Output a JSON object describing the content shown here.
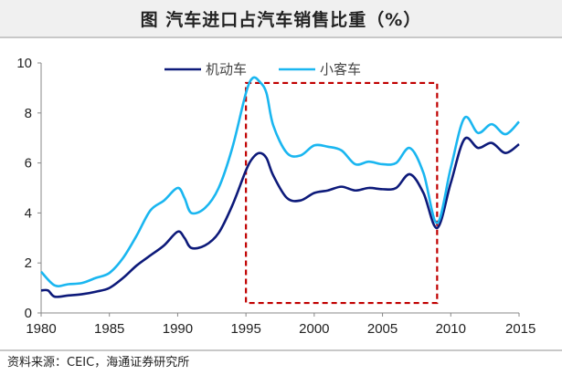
{
  "header": {
    "title": "图   汽车进口占汽车销售比重（%）"
  },
  "footer": {
    "source": "资料来源：CEIC，海通证券研究所"
  },
  "chart_data": {
    "type": "line",
    "title": "图   汽车进口占汽车销售比重（%）",
    "xlabel": "",
    "ylabel": "",
    "xlim": [
      1980,
      2015
    ],
    "ylim": [
      0,
      10
    ],
    "xticks": [
      1980,
      1985,
      1990,
      1995,
      2000,
      2005,
      2010,
      2015
    ],
    "xtick_labels": [
      "1980",
      "1985",
      "1990",
      "1995",
      "2000",
      "2005",
      "2010",
      "2015"
    ],
    "yticks": [
      0,
      2,
      4,
      6,
      8,
      10
    ],
    "legend_position": "top",
    "grid": false,
    "annotation": {
      "type": "dashed-rectangle",
      "x_range": [
        1995,
        2009
      ],
      "y_range": [
        0.4,
        9.2
      ],
      "color": "#c00000"
    },
    "series": [
      {
        "name": "机动车",
        "color": "#0d1a7a",
        "x": [
          1980,
          1980.5,
          1981,
          1982,
          1983,
          1984,
          1985,
          1986,
          1987,
          1988,
          1989,
          1990,
          1990.5,
          1991,
          1992,
          1993,
          1994,
          1995,
          1995.5,
          1996,
          1996.5,
          1997,
          1998,
          1999,
          2000,
          2001,
          2002,
          2003,
          2004,
          2005,
          2006,
          2007,
          2008,
          2009,
          2010,
          2011,
          2012,
          2013,
          2014,
          2015
        ],
        "y": [
          0.9,
          0.9,
          0.65,
          0.7,
          0.75,
          0.85,
          1.0,
          1.4,
          1.9,
          2.3,
          2.7,
          3.25,
          3.0,
          2.6,
          2.7,
          3.2,
          4.3,
          5.7,
          6.2,
          6.4,
          6.2,
          5.5,
          4.6,
          4.5,
          4.8,
          4.9,
          5.05,
          4.9,
          5.0,
          4.95,
          5.0,
          5.55,
          4.8,
          3.4,
          5.2,
          6.95,
          6.6,
          6.8,
          6.4,
          6.75
        ]
      },
      {
        "name": "小客车",
        "color": "#1ab6f0",
        "x": [
          1980,
          1981,
          1982,
          1983,
          1984,
          1985,
          1986,
          1987,
          1988,
          1989,
          1990,
          1990.5,
          1991,
          1992,
          1993,
          1994,
          1995,
          1995.5,
          1996,
          1996.5,
          1997,
          1998,
          1999,
          2000,
          2001,
          2002,
          2003,
          2004,
          2005,
          2006,
          2007,
          2008,
          2009,
          2010,
          2011,
          2012,
          2013,
          2014,
          2015
        ],
        "y": [
          1.65,
          1.1,
          1.15,
          1.2,
          1.4,
          1.6,
          2.2,
          3.1,
          4.1,
          4.5,
          5.0,
          4.6,
          4.0,
          4.2,
          5.0,
          6.6,
          8.8,
          9.4,
          9.25,
          8.8,
          7.5,
          6.4,
          6.3,
          6.7,
          6.65,
          6.5,
          5.95,
          6.05,
          5.95,
          6.0,
          6.6,
          5.6,
          3.6,
          5.8,
          7.8,
          7.2,
          7.55,
          7.15,
          7.65
        ]
      }
    ]
  }
}
